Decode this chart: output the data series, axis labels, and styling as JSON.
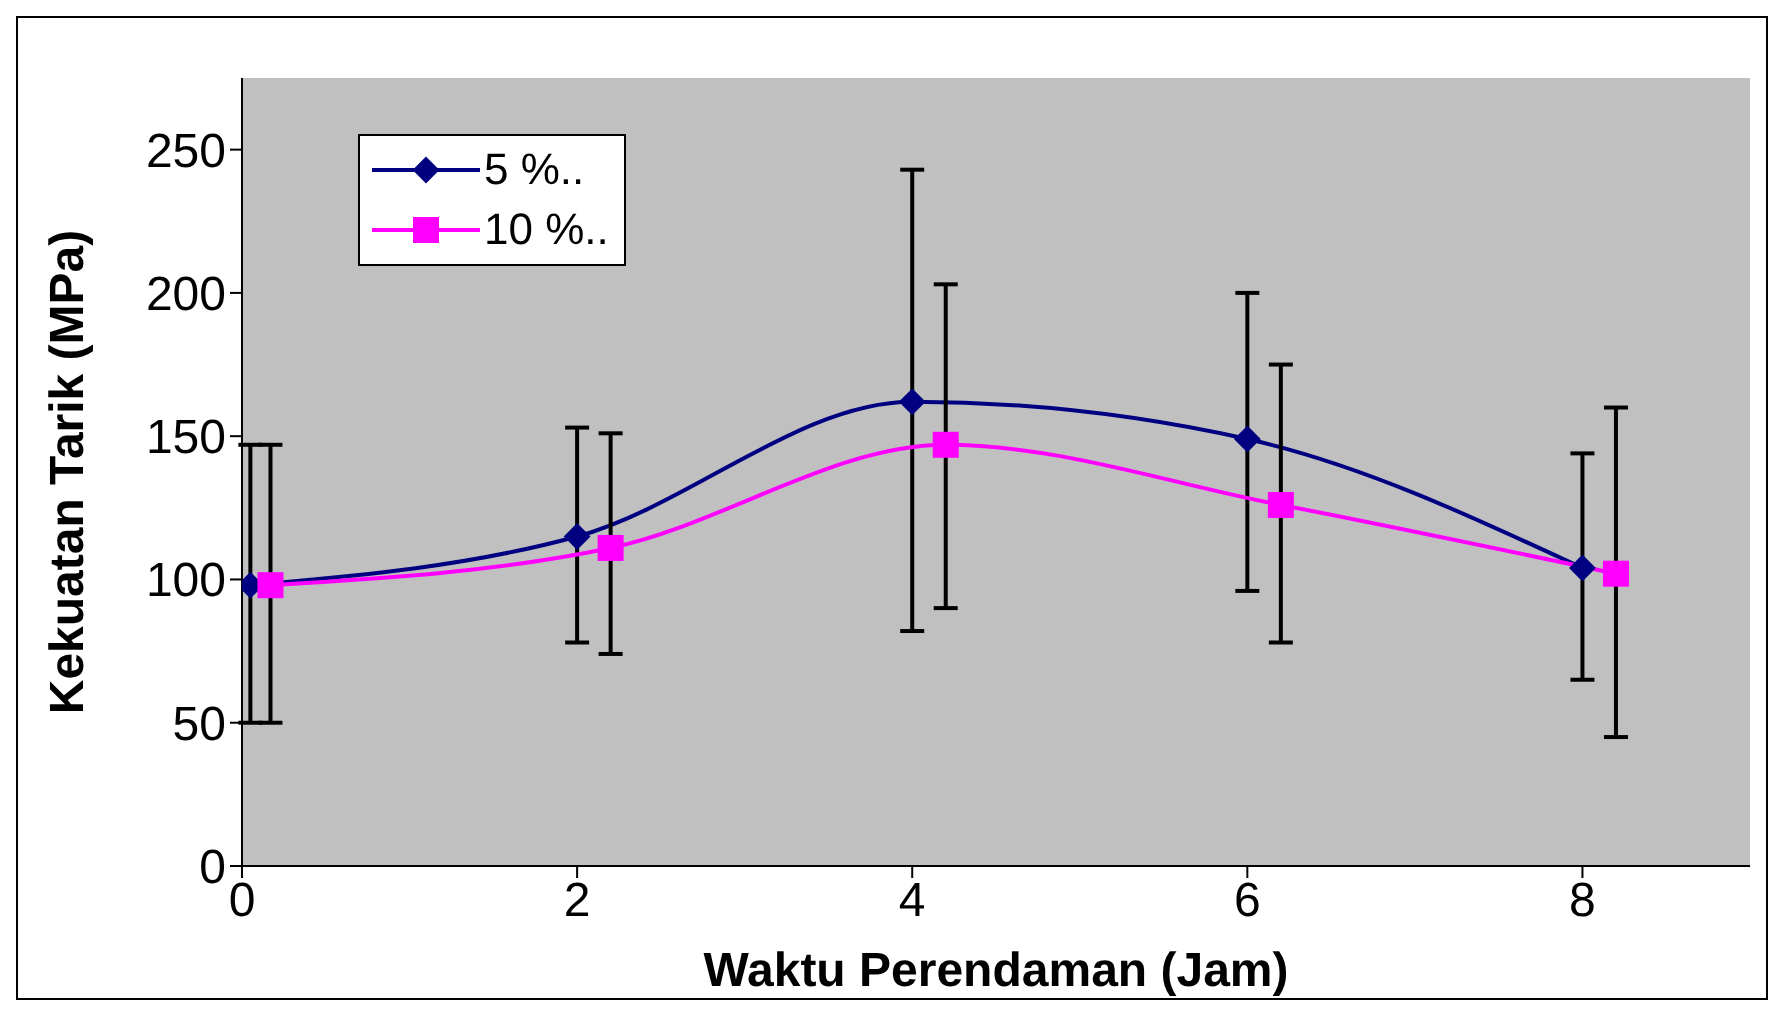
{
  "chart_data": {
    "type": "line",
    "xlabel": "Waktu Perendaman (Jam)",
    "ylabel": "Kekuatan Tarik (MPa)",
    "xlim": [
      0,
      9
    ],
    "xticks": [
      0,
      2,
      4,
      6,
      8
    ],
    "ylim": [
      0,
      275
    ],
    "yticks": [
      0,
      50,
      100,
      150,
      200,
      250
    ],
    "grid": false,
    "legend": "top left",
    "line_style": "solid",
    "series": [
      {
        "name": "5 %..",
        "color": "#000080",
        "marker": "diamond",
        "x": [
          0.05,
          2,
          4,
          6,
          8
        ],
        "values": [
          98,
          115,
          162,
          149,
          104
        ],
        "errors": [
          [
            50,
            147
          ],
          [
            78,
            153
          ],
          [
            82,
            243
          ],
          [
            96,
            200
          ],
          [
            65,
            144
          ]
        ]
      },
      {
        "name": "10 %..",
        "color": "#ff00ff",
        "marker": "square",
        "x": [
          0.17,
          2.2,
          4.2,
          6.2,
          8.2
        ],
        "values": [
          98,
          111,
          147,
          126,
          102
        ],
        "errors": [
          [
            50,
            147
          ],
          [
            74,
            151
          ],
          [
            90,
            203
          ],
          [
            78,
            175
          ],
          [
            45,
            160
          ]
        ]
      }
    ]
  }
}
